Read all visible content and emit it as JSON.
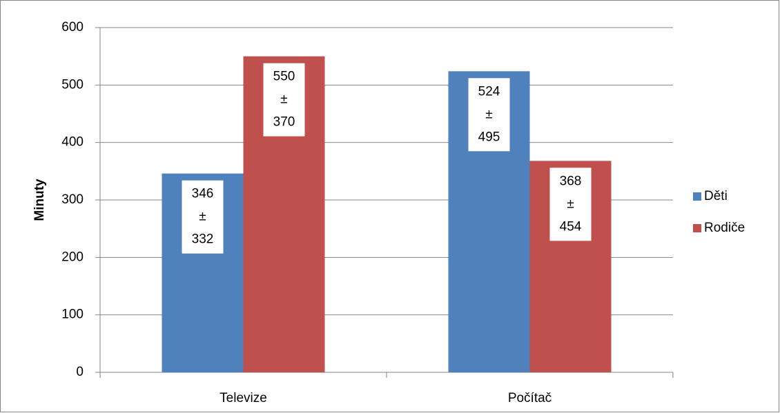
{
  "chart_data": {
    "type": "bar",
    "y_label": "Minuty",
    "categories": [
      "Televize",
      "Počítač"
    ],
    "series": [
      {
        "name": "Děti",
        "color": "#4f81bd",
        "values": [
          346,
          524
        ],
        "value_labels": [
          "346 ± 332",
          "524 ± 495"
        ]
      },
      {
        "name": "Rodiče",
        "color": "#c0504d",
        "values": [
          550,
          368
        ],
        "value_labels": [
          "550 ± 370",
          "368 ± 454"
        ]
      }
    ],
    "ylim": [
      0,
      600
    ],
    "yticks": [
      0,
      100,
      200,
      300,
      400,
      500,
      600
    ],
    "grid": true,
    "legend": "right"
  }
}
